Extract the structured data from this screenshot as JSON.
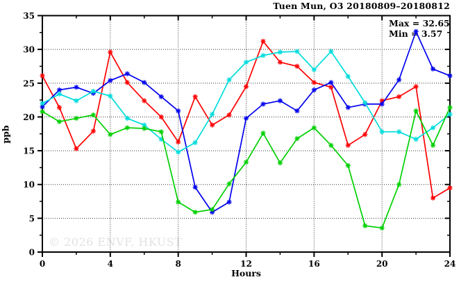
{
  "header": {
    "title": "Tuen Mun, O3 20180809–20180812"
  },
  "annotation": {
    "max_label": "Max = 32.65",
    "min_label": "Min = 3.57"
  },
  "watermark": "© 2026 ENVF, HKUST",
  "axes": {
    "x": {
      "label": "Hours",
      "min": 0,
      "max": 24,
      "major_ticks": [
        0,
        4,
        8,
        12,
        16,
        20,
        24
      ],
      "minor_ticks": [
        2,
        6,
        10,
        14,
        18,
        22
      ],
      "gridlines": [
        4,
        8,
        12,
        16,
        20
      ]
    },
    "y": {
      "label": "ppb",
      "min": 0,
      "max": 35,
      "major_ticks": [
        0,
        5,
        10,
        15,
        20,
        25,
        30,
        35
      ],
      "minor_ticks": [
        2.5,
        7.5,
        12.5,
        17.5,
        22.5,
        27.5,
        32.5
      ],
      "gridlines": [
        5,
        10,
        15,
        20,
        25,
        30
      ]
    }
  },
  "chart_data": {
    "type": "line",
    "title": "Tuen Mun, O3 20180809–20180812",
    "xlabel": "Hours",
    "ylabel": "ppb",
    "xlim": [
      0,
      24
    ],
    "ylim": [
      0,
      35
    ],
    "grid": true,
    "legend": "none",
    "marker": "asterisk",
    "stats": {
      "max": 32.65,
      "min": 3.57
    },
    "x": [
      0,
      1,
      2,
      3,
      4,
      5,
      6,
      7,
      8,
      9,
      10,
      11,
      12,
      13,
      14,
      15,
      16,
      17,
      18,
      19,
      20,
      21,
      22,
      23,
      24
    ],
    "series": [
      {
        "name": "red",
        "color": "#ff0000",
        "values": [
          26.1,
          21.4,
          15.3,
          17.9,
          29.6,
          25.1,
          22.4,
          20.0,
          16.3,
          23.0,
          18.8,
          20.3,
          24.5,
          31.2,
          28.1,
          27.5,
          25.1,
          24.4,
          15.8,
          17.4,
          22.4,
          23.0,
          24.5,
          8.0,
          9.5
        ]
      },
      {
        "name": "blue",
        "color": "#0000ee",
        "values": [
          21.5,
          24.0,
          24.4,
          23.5,
          25.4,
          26.4,
          25.1,
          23.0,
          20.9,
          9.6,
          5.9,
          7.4,
          19.8,
          21.9,
          22.4,
          20.9,
          24.0,
          25.1,
          21.4,
          21.9,
          21.9,
          25.5,
          32.65,
          27.1,
          26.1
        ]
      },
      {
        "name": "cyan",
        "color": "#00dcdc",
        "values": [
          22.0,
          23.4,
          22.4,
          23.8,
          23.1,
          19.8,
          18.8,
          16.7,
          14.8,
          16.2,
          20.4,
          25.5,
          28.1,
          29.1,
          29.6,
          29.7,
          27.0,
          29.7,
          26.0,
          22.1,
          17.8,
          17.8,
          16.7,
          18.4,
          20.4
        ]
      },
      {
        "name": "green",
        "color": "#00d000",
        "values": [
          20.8,
          19.3,
          19.8,
          20.3,
          17.4,
          18.4,
          18.3,
          17.8,
          7.4,
          5.9,
          6.3,
          10.1,
          13.3,
          17.6,
          13.2,
          16.8,
          18.4,
          15.8,
          12.8,
          3.9,
          3.57,
          10.0,
          20.9,
          15.8,
          21.4
        ]
      }
    ]
  }
}
